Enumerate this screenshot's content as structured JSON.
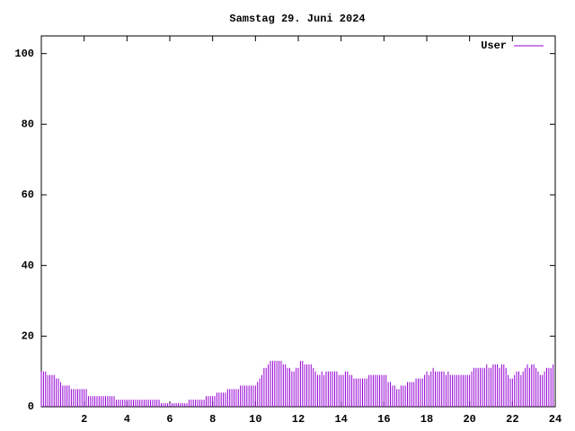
{
  "chart_data": {
    "type": "impulse",
    "title": "Samstag 29. Juni 2024",
    "xlim": [
      0,
      24
    ],
    "xticks": [
      2,
      4,
      6,
      8,
      10,
      12,
      14,
      16,
      18,
      20,
      22,
      24
    ],
    "ylim": [
      0,
      105
    ],
    "yticks": [
      0,
      20,
      40,
      60,
      80,
      100
    ],
    "legend": "top-right",
    "series": [
      {
        "name": "User",
        "color": "#9400d3",
        "x": [
          0,
          0.1,
          0.2,
          0.3,
          0.4,
          0.5,
          0.6,
          0.7,
          0.8,
          0.9,
          1,
          1.1,
          1.2,
          1.3,
          1.4,
          1.5,
          1.6,
          1.7,
          1.8,
          1.9,
          2,
          2.1,
          2.2,
          2.3,
          2.4,
          2.5,
          2.6,
          2.7,
          2.8,
          2.9,
          3,
          3.1,
          3.2,
          3.3,
          3.4,
          3.5,
          3.6,
          3.7,
          3.8,
          3.9,
          4,
          4.1,
          4.2,
          4.3,
          4.4,
          4.5,
          4.6,
          4.7,
          4.8,
          4.9,
          5,
          5.1,
          5.2,
          5.3,
          5.4,
          5.5,
          5.6,
          5.7,
          5.8,
          5.9,
          6,
          6.1,
          6.2,
          6.3,
          6.4,
          6.5,
          6.6,
          6.7,
          6.8,
          6.9,
          7,
          7.1,
          7.2,
          7.3,
          7.4,
          7.5,
          7.6,
          7.7,
          7.8,
          7.9,
          8,
          8.1,
          8.2,
          8.3,
          8.4,
          8.5,
          8.6,
          8.7,
          8.8,
          8.9,
          9,
          9.1,
          9.2,
          9.3,
          9.4,
          9.5,
          9.6,
          9.7,
          9.8,
          9.9,
          10,
          10.1,
          10.2,
          10.3,
          10.4,
          10.5,
          10.6,
          10.7,
          10.8,
          10.9,
          11,
          11.1,
          11.2,
          11.3,
          11.4,
          11.5,
          11.6,
          11.7,
          11.8,
          11.9,
          12,
          12.1,
          12.2,
          12.3,
          12.4,
          12.5,
          12.6,
          12.7,
          12.8,
          12.9,
          13,
          13.1,
          13.2,
          13.3,
          13.4,
          13.5,
          13.6,
          13.7,
          13.8,
          13.9,
          14,
          14.1,
          14.2,
          14.3,
          14.4,
          14.5,
          14.6,
          14.7,
          14.8,
          14.9,
          15,
          15.1,
          15.2,
          15.3,
          15.4,
          15.5,
          15.6,
          15.7,
          15.8,
          15.9,
          16,
          16.1,
          16.2,
          16.3,
          16.4,
          16.5,
          16.6,
          16.7,
          16.8,
          16.9,
          17,
          17.1,
          17.2,
          17.3,
          17.4,
          17.5,
          17.6,
          17.7,
          17.8,
          17.9,
          18,
          18.1,
          18.2,
          18.3,
          18.4,
          18.5,
          18.6,
          18.7,
          18.8,
          18.9,
          19,
          19.1,
          19.2,
          19.3,
          19.4,
          19.5,
          19.6,
          19.7,
          19.8,
          19.9,
          20,
          20.1,
          20.2,
          20.3,
          20.4,
          20.5,
          20.6,
          20.7,
          20.8,
          20.9,
          21,
          21.1,
          21.2,
          21.3,
          21.4,
          21.5,
          21.6,
          21.7,
          21.8,
          21.9,
          22,
          22.1,
          22.2,
          22.3,
          22.4,
          22.5,
          22.6,
          22.7,
          22.8,
          22.9,
          23,
          23.1,
          23.2,
          23.3,
          23.4,
          23.5,
          23.6,
          23.7,
          23.8,
          23.9
        ],
        "values": [
          10,
          10,
          10,
          9,
          9,
          9,
          9,
          8,
          8,
          7,
          6,
          6,
          6,
          6,
          5,
          5,
          5,
          5,
          5,
          5,
          5,
          5,
          3,
          3,
          3,
          3,
          3,
          3,
          3,
          3,
          3,
          3,
          3,
          3,
          3,
          2,
          2,
          2,
          2,
          2,
          2,
          2,
          2,
          2,
          2,
          2,
          2,
          2,
          2,
          2,
          2,
          2,
          2,
          2,
          2,
          2,
          1,
          1,
          1,
          1,
          1,
          1,
          1,
          1,
          1,
          1,
          1,
          1,
          1,
          2,
          2,
          2,
          2,
          2,
          2,
          2,
          2,
          3,
          3,
          3,
          3,
          3,
          4,
          4,
          4,
          4,
          4,
          5,
          5,
          5,
          5,
          5,
          5,
          6,
          6,
          6,
          6,
          6,
          6,
          6,
          6,
          7,
          8,
          9,
          11,
          11,
          12,
          13,
          13,
          13,
          13,
          13,
          13,
          12,
          12,
          11,
          11,
          10,
          10,
          11,
          11,
          13,
          13,
          12,
          12,
          12,
          12,
          11,
          10,
          9,
          9,
          10,
          9,
          10,
          10,
          10,
          10,
          10,
          10,
          9,
          9,
          9,
          10,
          10,
          9,
          9,
          8,
          8,
          8,
          8,
          8,
          8,
          8,
          9,
          9,
          9,
          9,
          9,
          9,
          9,
          9,
          9,
          7,
          7,
          6,
          6,
          5,
          5,
          6,
          6,
          6,
          7,
          7,
          7,
          7,
          8,
          8,
          8,
          8,
          9,
          10,
          9,
          10,
          11,
          10,
          10,
          10,
          10,
          10,
          9,
          10,
          9,
          9,
          9,
          9,
          9,
          9,
          9,
          9,
          9,
          9,
          10,
          11,
          11,
          11,
          11,
          11,
          11,
          12,
          11,
          11,
          12,
          12,
          12,
          11,
          12,
          12,
          11,
          9,
          8,
          8,
          9,
          10,
          10,
          9,
          10,
          11,
          12,
          11,
          12,
          12,
          11,
          10,
          9,
          9,
          10,
          11,
          11,
          11,
          12
        ]
      }
    ]
  }
}
